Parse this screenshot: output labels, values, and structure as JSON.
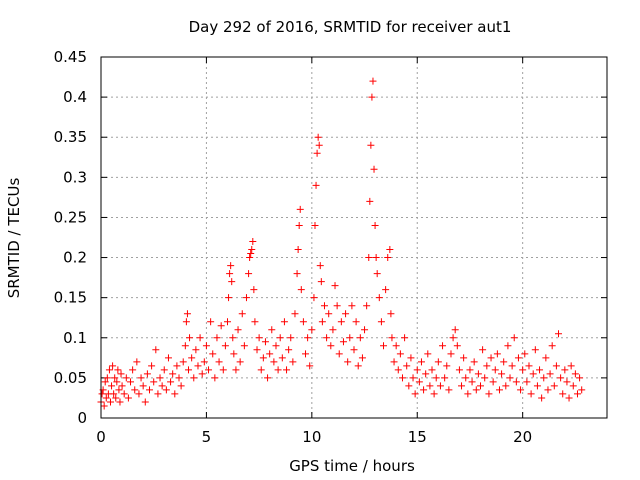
{
  "chart_data": {
    "type": "scatter",
    "title": "Day 292 of 2016, SRMTID for receiver aut1",
    "xlabel": "GPS time / hours",
    "ylabel": "SRMTID / TECUs",
    "xlim": [
      0,
      24
    ],
    "ylim": [
      0,
      0.45
    ],
    "xticks": [
      0,
      5,
      10,
      15,
      20
    ],
    "xtick_labels": [
      "0",
      "5",
      "10",
      "15",
      "20"
    ],
    "yticks": [
      0,
      0.05,
      0.1,
      0.15,
      0.2,
      0.25,
      0.3,
      0.35,
      0.4,
      0.45
    ],
    "ytick_labels": [
      "0",
      "0.05",
      "0.1",
      "0.15",
      "0.2",
      "0.25",
      "0.3",
      "0.35",
      "0.4",
      "0.45"
    ],
    "grid": true,
    "marker": "+",
    "marker_color": "#ff0000",
    "series": [
      {
        "name": "SRMTID",
        "points": [
          [
            0.0,
            0.02
          ],
          [
            0.05,
            0.03
          ],
          [
            0.1,
            0.035
          ],
          [
            0.15,
            0.015
          ],
          [
            0.2,
            0.045
          ],
          [
            0.25,
            0.025
          ],
          [
            0.3,
            0.05
          ],
          [
            0.35,
            0.03
          ],
          [
            0.4,
            0.06
          ],
          [
            0.45,
            0.02
          ],
          [
            0.5,
            0.04
          ],
          [
            0.55,
            0.065
          ],
          [
            0.6,
            0.03
          ],
          [
            0.65,
            0.05
          ],
          [
            0.7,
            0.025
          ],
          [
            0.75,
            0.045
          ],
          [
            0.8,
            0.06
          ],
          [
            0.85,
            0.035
          ],
          [
            0.9,
            0.02
          ],
          [
            0.95,
            0.055
          ],
          [
            1.0,
            0.04
          ],
          [
            1.1,
            0.03
          ],
          [
            1.2,
            0.05
          ],
          [
            1.3,
            0.025
          ],
          [
            1.4,
            0.045
          ],
          [
            1.5,
            0.06
          ],
          [
            1.6,
            0.035
          ],
          [
            1.7,
            0.07
          ],
          [
            1.8,
            0.03
          ],
          [
            1.9,
            0.05
          ],
          [
            2.0,
            0.04
          ],
          [
            2.1,
            0.02
          ],
          [
            2.2,
            0.055
          ],
          [
            2.3,
            0.035
          ],
          [
            2.4,
            0.065
          ],
          [
            2.5,
            0.045
          ],
          [
            2.6,
            0.085
          ],
          [
            2.7,
            0.03
          ],
          [
            2.8,
            0.05
          ],
          [
            2.9,
            0.04
          ],
          [
            3.0,
            0.06
          ],
          [
            3.1,
            0.035
          ],
          [
            3.2,
            0.075
          ],
          [
            3.3,
            0.045
          ],
          [
            3.4,
            0.055
          ],
          [
            3.5,
            0.03
          ],
          [
            3.6,
            0.065
          ],
          [
            3.7,
            0.05
          ],
          [
            3.8,
            0.04
          ],
          [
            3.9,
            0.07
          ],
          [
            4.0,
            0.09
          ],
          [
            4.05,
            0.12
          ],
          [
            4.1,
            0.13
          ],
          [
            4.15,
            0.06
          ],
          [
            4.2,
            0.1
          ],
          [
            4.3,
            0.075
          ],
          [
            4.4,
            0.05
          ],
          [
            4.5,
            0.085
          ],
          [
            4.6,
            0.065
          ],
          [
            4.7,
            0.1
          ],
          [
            4.8,
            0.055
          ],
          [
            4.9,
            0.07
          ],
          [
            5.0,
            0.09
          ],
          [
            5.1,
            0.06
          ],
          [
            5.2,
            0.12
          ],
          [
            5.3,
            0.08
          ],
          [
            5.4,
            0.05
          ],
          [
            5.5,
            0.1
          ],
          [
            5.6,
            0.07
          ],
          [
            5.7,
            0.115
          ],
          [
            5.8,
            0.06
          ],
          [
            5.9,
            0.09
          ],
          [
            6.0,
            0.12
          ],
          [
            6.05,
            0.15
          ],
          [
            6.1,
            0.18
          ],
          [
            6.15,
            0.19
          ],
          [
            6.2,
            0.17
          ],
          [
            6.25,
            0.1
          ],
          [
            6.3,
            0.08
          ],
          [
            6.4,
            0.06
          ],
          [
            6.5,
            0.11
          ],
          [
            6.6,
            0.07
          ],
          [
            6.7,
            0.13
          ],
          [
            6.8,
            0.09
          ],
          [
            6.9,
            0.15
          ],
          [
            7.0,
            0.18
          ],
          [
            7.05,
            0.2
          ],
          [
            7.1,
            0.205
          ],
          [
            7.15,
            0.21
          ],
          [
            7.2,
            0.22
          ],
          [
            7.25,
            0.16
          ],
          [
            7.3,
            0.12
          ],
          [
            7.4,
            0.085
          ],
          [
            7.5,
            0.1
          ],
          [
            7.6,
            0.06
          ],
          [
            7.7,
            0.075
          ],
          [
            7.8,
            0.095
          ],
          [
            7.9,
            0.05
          ],
          [
            8.0,
            0.08
          ],
          [
            8.1,
            0.11
          ],
          [
            8.2,
            0.07
          ],
          [
            8.3,
            0.09
          ],
          [
            8.4,
            0.06
          ],
          [
            8.5,
            0.1
          ],
          [
            8.6,
            0.075
          ],
          [
            8.7,
            0.12
          ],
          [
            8.8,
            0.06
          ],
          [
            8.9,
            0.085
          ],
          [
            9.0,
            0.1
          ],
          [
            9.1,
            0.07
          ],
          [
            9.2,
            0.13
          ],
          [
            9.3,
            0.18
          ],
          [
            9.35,
            0.21
          ],
          [
            9.4,
            0.24
          ],
          [
            9.45,
            0.26
          ],
          [
            9.5,
            0.16
          ],
          [
            9.6,
            0.12
          ],
          [
            9.7,
            0.08
          ],
          [
            9.8,
            0.1
          ],
          [
            9.9,
            0.065
          ],
          [
            10.0,
            0.11
          ],
          [
            10.1,
            0.15
          ],
          [
            10.15,
            0.24
          ],
          [
            10.2,
            0.29
          ],
          [
            10.25,
            0.33
          ],
          [
            10.3,
            0.35
          ],
          [
            10.35,
            0.34
          ],
          [
            10.4,
            0.19
          ],
          [
            10.45,
            0.17
          ],
          [
            10.5,
            0.12
          ],
          [
            10.6,
            0.14
          ],
          [
            10.7,
            0.1
          ],
          [
            10.8,
            0.13
          ],
          [
            10.9,
            0.09
          ],
          [
            11.0,
            0.11
          ],
          [
            11.1,
            0.165
          ],
          [
            11.2,
            0.14
          ],
          [
            11.3,
            0.08
          ],
          [
            11.4,
            0.12
          ],
          [
            11.5,
            0.095
          ],
          [
            11.6,
            0.13
          ],
          [
            11.7,
            0.07
          ],
          [
            11.8,
            0.1
          ],
          [
            11.9,
            0.14
          ],
          [
            12.0,
            0.085
          ],
          [
            12.1,
            0.12
          ],
          [
            12.2,
            0.065
          ],
          [
            12.3,
            0.1
          ],
          [
            12.4,
            0.075
          ],
          [
            12.5,
            0.11
          ],
          [
            12.6,
            0.14
          ],
          [
            12.7,
            0.2
          ],
          [
            12.75,
            0.27
          ],
          [
            12.8,
            0.34
          ],
          [
            12.85,
            0.4
          ],
          [
            12.9,
            0.42
          ],
          [
            12.95,
            0.31
          ],
          [
            13.0,
            0.24
          ],
          [
            13.05,
            0.2
          ],
          [
            13.1,
            0.18
          ],
          [
            13.2,
            0.15
          ],
          [
            13.3,
            0.12
          ],
          [
            13.4,
            0.09
          ],
          [
            13.5,
            0.16
          ],
          [
            13.6,
            0.2
          ],
          [
            13.7,
            0.21
          ],
          [
            13.75,
            0.13
          ],
          [
            13.8,
            0.1
          ],
          [
            13.9,
            0.07
          ],
          [
            14.0,
            0.09
          ],
          [
            14.1,
            0.06
          ],
          [
            14.2,
            0.08
          ],
          [
            14.3,
            0.05
          ],
          [
            14.4,
            0.1
          ],
          [
            14.5,
            0.065
          ],
          [
            14.6,
            0.04
          ],
          [
            14.7,
            0.075
          ],
          [
            14.8,
            0.05
          ],
          [
            14.9,
            0.03
          ],
          [
            15.0,
            0.06
          ],
          [
            15.1,
            0.045
          ],
          [
            15.2,
            0.07
          ],
          [
            15.3,
            0.035
          ],
          [
            15.4,
            0.055
          ],
          [
            15.5,
            0.08
          ],
          [
            15.6,
            0.04
          ],
          [
            15.7,
            0.06
          ],
          [
            15.8,
            0.03
          ],
          [
            15.9,
            0.05
          ],
          [
            16.0,
            0.07
          ],
          [
            16.1,
            0.04
          ],
          [
            16.2,
            0.09
          ],
          [
            16.3,
            0.05
          ],
          [
            16.4,
            0.065
          ],
          [
            16.5,
            0.035
          ],
          [
            16.6,
            0.08
          ],
          [
            16.7,
            0.1
          ],
          [
            16.8,
            0.11
          ],
          [
            16.9,
            0.09
          ],
          [
            17.0,
            0.06
          ],
          [
            17.1,
            0.04
          ],
          [
            17.2,
            0.075
          ],
          [
            17.3,
            0.05
          ],
          [
            17.4,
            0.03
          ],
          [
            17.5,
            0.06
          ],
          [
            17.6,
            0.045
          ],
          [
            17.7,
            0.07
          ],
          [
            17.8,
            0.035
          ],
          [
            17.9,
            0.055
          ],
          [
            18.0,
            0.04
          ],
          [
            18.1,
            0.085
          ],
          [
            18.2,
            0.05
          ],
          [
            18.3,
            0.065
          ],
          [
            18.4,
            0.03
          ],
          [
            18.5,
            0.075
          ],
          [
            18.6,
            0.045
          ],
          [
            18.7,
            0.06
          ],
          [
            18.8,
            0.08
          ],
          [
            18.9,
            0.035
          ],
          [
            19.0,
            0.055
          ],
          [
            19.1,
            0.07
          ],
          [
            19.2,
            0.04
          ],
          [
            19.3,
            0.09
          ],
          [
            19.4,
            0.05
          ],
          [
            19.5,
            0.065
          ],
          [
            19.6,
            0.1
          ],
          [
            19.7,
            0.045
          ],
          [
            19.8,
            0.075
          ],
          [
            19.9,
            0.035
          ],
          [
            20.0,
            0.06
          ],
          [
            20.1,
            0.08
          ],
          [
            20.2,
            0.045
          ],
          [
            20.3,
            0.065
          ],
          [
            20.4,
            0.03
          ],
          [
            20.5,
            0.055
          ],
          [
            20.6,
            0.085
          ],
          [
            20.7,
            0.04
          ],
          [
            20.8,
            0.06
          ],
          [
            20.9,
            0.025
          ],
          [
            21.0,
            0.05
          ],
          [
            21.1,
            0.075
          ],
          [
            21.2,
            0.035
          ],
          [
            21.3,
            0.055
          ],
          [
            21.4,
            0.09
          ],
          [
            21.5,
            0.04
          ],
          [
            21.6,
            0.065
          ],
          [
            21.7,
            0.105
          ],
          [
            21.8,
            0.05
          ],
          [
            21.9,
            0.03
          ],
          [
            22.0,
            0.06
          ],
          [
            22.1,
            0.045
          ],
          [
            22.2,
            0.025
          ],
          [
            22.3,
            0.065
          ],
          [
            22.4,
            0.04
          ],
          [
            22.5,
            0.055
          ],
          [
            22.6,
            0.03
          ],
          [
            22.7,
            0.05
          ],
          [
            22.8,
            0.035
          ]
        ]
      }
    ]
  }
}
